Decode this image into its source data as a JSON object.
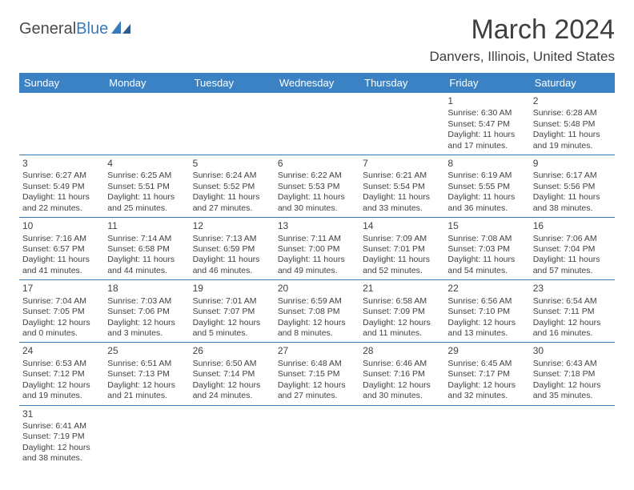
{
  "brand": {
    "part1": "General",
    "part2": "Blue"
  },
  "title": "March 2024",
  "location": "Danvers, Illinois, United States",
  "colors": {
    "header_bg": "#3b82c4",
    "header_text": "#ffffff",
    "cell_border": "#3b7ab8",
    "text": "#414141",
    "brand_accent": "#3b7ab8"
  },
  "weekdays": [
    "Sunday",
    "Monday",
    "Tuesday",
    "Wednesday",
    "Thursday",
    "Friday",
    "Saturday"
  ],
  "weeks": [
    [
      null,
      null,
      null,
      null,
      null,
      {
        "d": "1",
        "sr": "6:30 AM",
        "ss": "5:47 PM",
        "dl": "11 hours and 17 minutes."
      },
      {
        "d": "2",
        "sr": "6:28 AM",
        "ss": "5:48 PM",
        "dl": "11 hours and 19 minutes."
      }
    ],
    [
      {
        "d": "3",
        "sr": "6:27 AM",
        "ss": "5:49 PM",
        "dl": "11 hours and 22 minutes."
      },
      {
        "d": "4",
        "sr": "6:25 AM",
        "ss": "5:51 PM",
        "dl": "11 hours and 25 minutes."
      },
      {
        "d": "5",
        "sr": "6:24 AM",
        "ss": "5:52 PM",
        "dl": "11 hours and 27 minutes."
      },
      {
        "d": "6",
        "sr": "6:22 AM",
        "ss": "5:53 PM",
        "dl": "11 hours and 30 minutes."
      },
      {
        "d": "7",
        "sr": "6:21 AM",
        "ss": "5:54 PM",
        "dl": "11 hours and 33 minutes."
      },
      {
        "d": "8",
        "sr": "6:19 AM",
        "ss": "5:55 PM",
        "dl": "11 hours and 36 minutes."
      },
      {
        "d": "9",
        "sr": "6:17 AM",
        "ss": "5:56 PM",
        "dl": "11 hours and 38 minutes."
      }
    ],
    [
      {
        "d": "10",
        "sr": "7:16 AM",
        "ss": "6:57 PM",
        "dl": "11 hours and 41 minutes."
      },
      {
        "d": "11",
        "sr": "7:14 AM",
        "ss": "6:58 PM",
        "dl": "11 hours and 44 minutes."
      },
      {
        "d": "12",
        "sr": "7:13 AM",
        "ss": "6:59 PM",
        "dl": "11 hours and 46 minutes."
      },
      {
        "d": "13",
        "sr": "7:11 AM",
        "ss": "7:00 PM",
        "dl": "11 hours and 49 minutes."
      },
      {
        "d": "14",
        "sr": "7:09 AM",
        "ss": "7:01 PM",
        "dl": "11 hours and 52 minutes."
      },
      {
        "d": "15",
        "sr": "7:08 AM",
        "ss": "7:03 PM",
        "dl": "11 hours and 54 minutes."
      },
      {
        "d": "16",
        "sr": "7:06 AM",
        "ss": "7:04 PM",
        "dl": "11 hours and 57 minutes."
      }
    ],
    [
      {
        "d": "17",
        "sr": "7:04 AM",
        "ss": "7:05 PM",
        "dl": "12 hours and 0 minutes."
      },
      {
        "d": "18",
        "sr": "7:03 AM",
        "ss": "7:06 PM",
        "dl": "12 hours and 3 minutes."
      },
      {
        "d": "19",
        "sr": "7:01 AM",
        "ss": "7:07 PM",
        "dl": "12 hours and 5 minutes."
      },
      {
        "d": "20",
        "sr": "6:59 AM",
        "ss": "7:08 PM",
        "dl": "12 hours and 8 minutes."
      },
      {
        "d": "21",
        "sr": "6:58 AM",
        "ss": "7:09 PM",
        "dl": "12 hours and 11 minutes."
      },
      {
        "d": "22",
        "sr": "6:56 AM",
        "ss": "7:10 PM",
        "dl": "12 hours and 13 minutes."
      },
      {
        "d": "23",
        "sr": "6:54 AM",
        "ss": "7:11 PM",
        "dl": "12 hours and 16 minutes."
      }
    ],
    [
      {
        "d": "24",
        "sr": "6:53 AM",
        "ss": "7:12 PM",
        "dl": "12 hours and 19 minutes."
      },
      {
        "d": "25",
        "sr": "6:51 AM",
        "ss": "7:13 PM",
        "dl": "12 hours and 21 minutes."
      },
      {
        "d": "26",
        "sr": "6:50 AM",
        "ss": "7:14 PM",
        "dl": "12 hours and 24 minutes."
      },
      {
        "d": "27",
        "sr": "6:48 AM",
        "ss": "7:15 PM",
        "dl": "12 hours and 27 minutes."
      },
      {
        "d": "28",
        "sr": "6:46 AM",
        "ss": "7:16 PM",
        "dl": "12 hours and 30 minutes."
      },
      {
        "d": "29",
        "sr": "6:45 AM",
        "ss": "7:17 PM",
        "dl": "12 hours and 32 minutes."
      },
      {
        "d": "30",
        "sr": "6:43 AM",
        "ss": "7:18 PM",
        "dl": "12 hours and 35 minutes."
      }
    ],
    [
      {
        "d": "31",
        "sr": "6:41 AM",
        "ss": "7:19 PM",
        "dl": "12 hours and 38 minutes."
      },
      null,
      null,
      null,
      null,
      null,
      null
    ]
  ],
  "labels": {
    "sunrise": "Sunrise:",
    "sunset": "Sunset:",
    "daylight": "Daylight:"
  }
}
